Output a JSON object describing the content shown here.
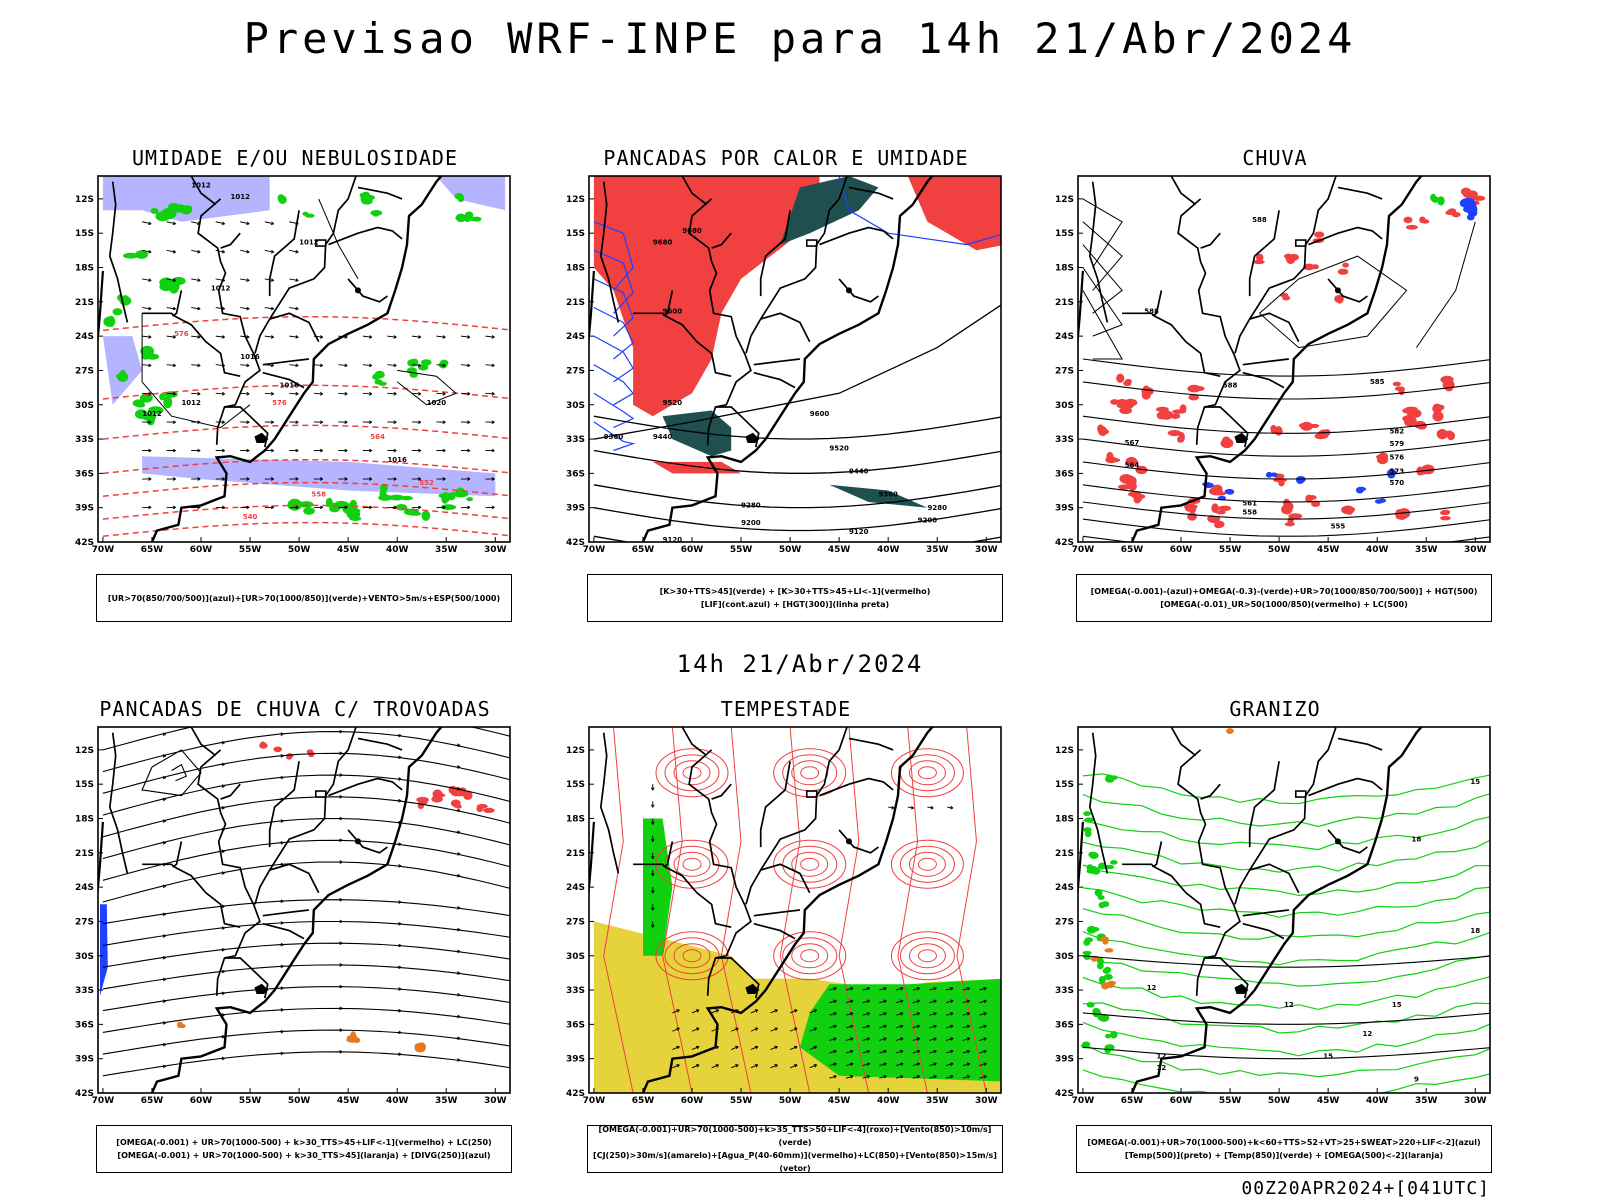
{
  "title": "Previsao WRF-INPE  para 14h 21/Abr/2024",
  "subtitle": "14h 21/Abr/2024",
  "footer": "00Z20APR2024+[041UTC]",
  "axes": {
    "lat_ticks": [
      "12S",
      "15S",
      "18S",
      "21S",
      "24S",
      "27S",
      "30S",
      "33S",
      "36S",
      "39S",
      "42S"
    ],
    "lon_ticks": [
      "70W",
      "65W",
      "60W",
      "55W",
      "50W",
      "45W",
      "40W",
      "35W",
      "30W"
    ]
  },
  "colors": {
    "red": "#f04040",
    "blue": "#2040ff",
    "green": "#10d010",
    "lavender": "#b4b4ff",
    "darkteal": "#1f4f4f",
    "yellow": "#e6d23a",
    "orange": "#e87820",
    "black": "#000000"
  },
  "panels": [
    {
      "title": "UMIDADE E/OU NEBULOSIDADE",
      "legend": [
        "[UR>70(850/700/500)](azul)+[UR>70(1000/850)](verde)+VENTO>5m/s+ESP(500/1000)"
      ],
      "contour_labels": [
        "1012",
        "1012",
        "1012",
        "1012",
        "1012",
        "1016",
        "1016",
        "1016",
        "1020",
        "1016",
        "1012",
        "576",
        "576",
        "570",
        "564",
        "558",
        "552",
        "546",
        "540"
      ]
    },
    {
      "title": "PANCADAS POR CALOR E UMIDADE",
      "legend": [
        "[K>30+TTS>45](verde) + [K>30+TTS>45+LI<-1](vermelho)",
        "[LIF](cont.azul) + [HGT(300)](linha preta)"
      ],
      "contour_labels": [
        "9680",
        "9680",
        "9600",
        "9600",
        "9520",
        "9520",
        "9440",
        "9440",
        "9360",
        "9280",
        "9200",
        "9280",
        "9200",
        "9120",
        "9120",
        "9360"
      ]
    },
    {
      "title": "CHUVA",
      "legend": [
        "[OMEGA(-0.001)-(azul)+OMEGA(-0.3)-(verde)+UR>70(1000/850/700/500)] + HGT(500)",
        "[OMEGA(-0.01)_UR>50(1000/850)(vermelho) + LC(500)"
      ],
      "contour_labels": [
        "588",
        "588",
        "588",
        "585",
        "582",
        "579",
        "576",
        "573",
        "570",
        "567",
        "564",
        "561",
        "558",
        "555",
        "555"
      ]
    },
    {
      "title": "PANCADAS DE CHUVA C/ TROVOADAS",
      "legend": [
        "[OMEGA(-0.001) + UR>70(1000-500) + k>30_TTS>45+LIF<-1](vermelho) + LC(250)",
        "[OMEGA(-0.001) + UR>70(1000-500) + k>30_TTS>45](laranja) + [DIVG(250)](azul)"
      ],
      "contour_labels": []
    },
    {
      "title": "TEMPESTADE",
      "legend": [
        "[OMEGA(-0.001)+UR>70(1000-500)+k>35_TTS>50+LIF<-4](roxo)+[Vento(850)>10m/s](verde)",
        "[CJ(250)>30m/s](amarelo)+[Agua_P(40-60mm)](vermelho)+LC(850)+[Vento(850)>15m/s](vetor)"
      ],
      "contour_labels": []
    },
    {
      "title": "GRANIZO",
      "legend": [
        "[OMEGA(-0.001)+UR>70(1000-500)+k<60+TTS>52+VT>25+SWEAT>220+LIF<-2](azul)",
        "[Temp(500)](preto) + [Temp(850)](verde) + [OMEGA(500)<-2](laranja)"
      ],
      "contour_labels": [
        "12",
        "12",
        "12",
        "15",
        "15",
        "15",
        "18",
        "18",
        "12",
        "12",
        "9"
      ]
    }
  ]
}
